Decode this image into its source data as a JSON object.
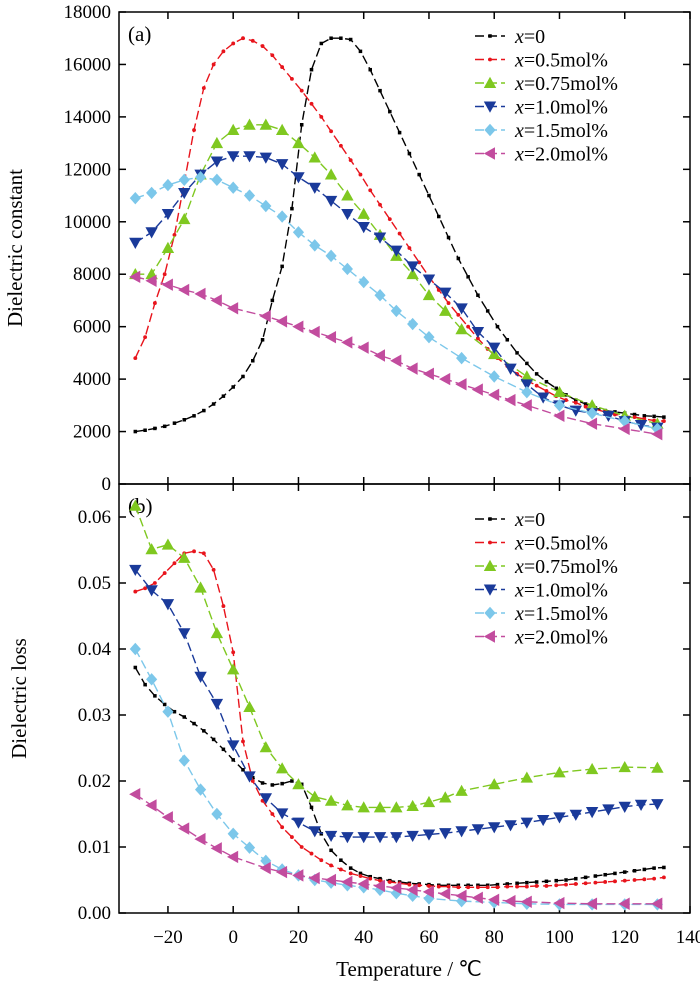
{
  "figure": {
    "xlabel": "Temperature / ℃"
  },
  "chart_data": [
    {
      "type": "line",
      "panel_label": "(a)",
      "ylabel": "Dielectric constant",
      "xlim": [
        -35,
        140
      ],
      "ylim": [
        0,
        18000
      ],
      "x_ticks": [
        "−20",
        "0",
        "20",
        "40",
        "60",
        "80",
        "100",
        "120",
        "140"
      ],
      "y_ticks": [
        "0",
        "2000",
        "4000",
        "6000",
        "8000",
        "10000",
        "12000",
        "14000",
        "16000",
        "18000"
      ],
      "legend_position": "top-right",
      "series": [
        {
          "name": "x=0",
          "legend_var": "x",
          "legend_rest": "=0",
          "color": "#000000",
          "marker": "square",
          "x": [
            -30,
            -27,
            -24,
            -21,
            -18,
            -15,
            -12,
            -9,
            -6,
            -3,
            0,
            3,
            6,
            9,
            12,
            15,
            18,
            21,
            24,
            27,
            30,
            33,
            36,
            39,
            42,
            45,
            48,
            51,
            54,
            57,
            60,
            63,
            66,
            69,
            72,
            75,
            78,
            81,
            84,
            87,
            90,
            93,
            96,
            99,
            102,
            105,
            108,
            111,
            114,
            117,
            120,
            123,
            126,
            129,
            132
          ],
          "y": [
            2000,
            2050,
            2120,
            2200,
            2320,
            2450,
            2600,
            2800,
            3050,
            3350,
            3700,
            4100,
            4700,
            5500,
            7000,
            8300,
            10500,
            13700,
            15800,
            16800,
            17000,
            17000,
            16950,
            16500,
            15800,
            15000,
            14200,
            13400,
            12600,
            11800,
            11000,
            10200,
            9400,
            8600,
            7900,
            7200,
            6600,
            6000,
            5500,
            5000,
            4600,
            4200,
            3900,
            3650,
            3400,
            3200,
            3050,
            2900,
            2800,
            2750,
            2700,
            2650,
            2600,
            2580,
            2550
          ]
        },
        {
          "name": "x=0.5mol%",
          "legend_var": "x",
          "legend_rest": "=0.5mol%",
          "color": "#e8141c",
          "marker": "circle",
          "x": [
            -30,
            -27,
            -24,
            -21,
            -18,
            -15,
            -12,
            -9,
            -6,
            -3,
            0,
            3,
            6,
            9,
            12,
            15,
            18,
            21,
            24,
            27,
            30,
            33,
            36,
            39,
            42,
            45,
            48,
            51,
            54,
            57,
            60,
            63,
            66,
            69,
            72,
            75,
            78,
            81,
            84,
            87,
            90,
            93,
            96,
            99,
            102,
            105,
            108,
            111,
            114,
            117,
            120,
            123,
            126,
            129,
            132
          ],
          "y": [
            4800,
            5600,
            6900,
            8000,
            9500,
            11500,
            13500,
            15100,
            16000,
            16500,
            16800,
            17000,
            16900,
            16700,
            16350,
            15900,
            15450,
            15000,
            14500,
            14000,
            13450,
            12900,
            12350,
            11800,
            11200,
            10650,
            10100,
            9550,
            9000,
            8450,
            7900,
            7400,
            6900,
            6450,
            6000,
            5550,
            5150,
            4800,
            4500,
            4200,
            3950,
            3750,
            3550,
            3350,
            3200,
            3100,
            2950,
            2850,
            2750,
            2650,
            2600,
            2550,
            2480,
            2420,
            2400
          ]
        },
        {
          "name": "x=0.75mol%",
          "legend_var": "x",
          "legend_rest": "=0.75mol%",
          "color": "#7fc820",
          "marker": "triangle-up",
          "x": [
            -30,
            -25,
            -20,
            -15,
            -10,
            -5,
            0,
            5,
            10,
            15,
            20,
            25,
            30,
            35,
            40,
            45,
            50,
            55,
            60,
            65,
            70,
            80,
            90,
            100,
            110,
            120,
            130
          ],
          "y": [
            8000,
            8000,
            9000,
            10100,
            11800,
            13000,
            13500,
            13700,
            13700,
            13500,
            13000,
            12450,
            11800,
            11000,
            10300,
            9500,
            8700,
            8000,
            7200,
            6600,
            5900,
            4950,
            4100,
            3500,
            3000,
            2600,
            2300
          ]
        },
        {
          "name": "x=1.0mol%",
          "legend_var": "x",
          "legend_rest": "=1.0mol%",
          "color": "#1a3a9a",
          "marker": "triangle-down",
          "x": [
            -30,
            -25,
            -20,
            -15,
            -10,
            -5,
            0,
            5,
            10,
            15,
            20,
            25,
            30,
            35,
            40,
            45,
            50,
            55,
            60,
            65,
            70,
            75,
            80,
            85,
            90,
            95,
            100,
            105,
            110,
            115,
            120,
            125,
            130
          ],
          "y": [
            9200,
            9600,
            10300,
            11100,
            11800,
            12300,
            12500,
            12500,
            12450,
            12200,
            11700,
            11300,
            10800,
            10300,
            9800,
            9400,
            8900,
            8300,
            7800,
            7300,
            6700,
            5800,
            5200,
            4400,
            3800,
            3300,
            3000,
            2800,
            2700,
            2600,
            2400,
            2250,
            2150
          ]
        },
        {
          "name": "x=1.5mol%",
          "legend_var": "x",
          "legend_rest": "=1.5mol%",
          "color": "#7cc7ea",
          "marker": "diamond",
          "x": [
            -30,
            -25,
            -20,
            -15,
            -10,
            -5,
            0,
            5,
            10,
            15,
            20,
            25,
            30,
            35,
            40,
            45,
            50,
            55,
            60,
            70,
            80,
            90,
            100,
            110,
            120,
            130
          ],
          "y": [
            10900,
            11100,
            11400,
            11600,
            11700,
            11600,
            11300,
            11000,
            10600,
            10200,
            9600,
            9100,
            8700,
            8200,
            7700,
            7200,
            6600,
            6100,
            5600,
            4800,
            4100,
            3500,
            3000,
            2700,
            2400,
            2100
          ]
        },
        {
          "name": "x=2.0mol%",
          "legend_var": "x",
          "legend_rest": "=2.0mol%",
          "color": "#c24c9e",
          "marker": "triangle-left",
          "x": [
            -30,
            -25,
            -20,
            -15,
            -10,
            -5,
            0,
            10,
            15,
            20,
            25,
            30,
            35,
            40,
            45,
            50,
            55,
            60,
            65,
            70,
            75,
            80,
            85,
            90,
            100,
            110,
            120,
            130
          ],
          "y": [
            7900,
            7750,
            7600,
            7400,
            7250,
            7000,
            6700,
            6400,
            6200,
            6000,
            5800,
            5600,
            5400,
            5200,
            4900,
            4700,
            4400,
            4200,
            4000,
            3800,
            3600,
            3400,
            3200,
            3000,
            2600,
            2300,
            2100,
            1900
          ]
        }
      ]
    },
    {
      "type": "line",
      "panel_label": "(b)",
      "ylabel": "Dielectric loss",
      "xlim": [
        -35,
        140
      ],
      "ylim": [
        0,
        0.065
      ],
      "x_ticks": [
        "−20",
        "0",
        "20",
        "40",
        "60",
        "80",
        "100",
        "120",
        "140"
      ],
      "y_ticks": [
        "0.00",
        "0.01",
        "0.02",
        "0.03",
        "0.04",
        "0.05",
        "0.06"
      ],
      "legend_position": "top-right",
      "series": [
        {
          "name": "x=0",
          "legend_var": "x",
          "legend_rest": "=0",
          "color": "#000000",
          "marker": "square",
          "x": [
            -30,
            -27,
            -24,
            -21,
            -18,
            -15,
            -12,
            -9,
            -6,
            -3,
            0,
            3,
            6,
            9,
            12,
            15,
            18,
            21,
            24,
            27,
            30,
            33,
            36,
            39,
            42,
            45,
            48,
            51,
            54,
            57,
            60,
            63,
            66,
            69,
            72,
            75,
            78,
            81,
            84,
            87,
            90,
            93,
            96,
            99,
            102,
            105,
            108,
            111,
            114,
            117,
            120,
            123,
            126,
            129,
            132
          ],
          "y": [
            0.0372,
            0.0346,
            0.0329,
            0.0316,
            0.0305,
            0.0297,
            0.0287,
            0.0276,
            0.0263,
            0.0248,
            0.0232,
            0.0217,
            0.0205,
            0.0197,
            0.0194,
            0.0196,
            0.02,
            0.0195,
            0.016,
            0.012,
            0.0095,
            0.008,
            0.0068,
            0.006,
            0.0055,
            0.0052,
            0.0049,
            0.0047,
            0.0045,
            0.0044,
            0.0043,
            0.0042,
            0.0042,
            0.0042,
            0.0042,
            0.0042,
            0.0042,
            0.0043,
            0.0044,
            0.0045,
            0.0046,
            0.0047,
            0.0048,
            0.0049,
            0.005,
            0.0052,
            0.0054,
            0.0056,
            0.0058,
            0.006,
            0.0062,
            0.0064,
            0.0066,
            0.0068,
            0.0069
          ]
        },
        {
          "name": "x=0.5mol%",
          "legend_var": "x",
          "legend_rest": "=0.5mol%",
          "color": "#e8141c",
          "marker": "circle",
          "x": [
            -30,
            -27,
            -24,
            -21,
            -18,
            -15,
            -12,
            -9,
            -6,
            -3,
            0,
            3,
            6,
            9,
            12,
            15,
            18,
            21,
            24,
            27,
            30,
            33,
            36,
            39,
            42,
            45,
            48,
            51,
            54,
            57,
            60,
            63,
            66,
            69,
            72,
            75,
            78,
            81,
            84,
            87,
            90,
            93,
            96,
            99,
            102,
            105,
            108,
            111,
            114,
            117,
            120,
            123,
            126,
            129,
            132
          ],
          "y": [
            0.0487,
            0.0492,
            0.05,
            0.0515,
            0.053,
            0.0545,
            0.0548,
            0.0545,
            0.052,
            0.0465,
            0.0395,
            0.026,
            0.02,
            0.017,
            0.015,
            0.013,
            0.0115,
            0.01,
            0.009,
            0.008,
            0.0072,
            0.0066,
            0.006,
            0.0056,
            0.0052,
            0.0049,
            0.0047,
            0.0045,
            0.0043,
            0.0042,
            0.0041,
            0.004,
            0.004,
            0.0039,
            0.0039,
            0.0039,
            0.0039,
            0.0039,
            0.004,
            0.004,
            0.004,
            0.0041,
            0.0041,
            0.0042,
            0.0043,
            0.0044,
            0.0045,
            0.0046,
            0.0047,
            0.0048,
            0.0049,
            0.005,
            0.0051,
            0.0052,
            0.0054
          ]
        },
        {
          "name": "x=0.75mol%",
          "legend_var": "x",
          "legend_rest": "=0.75mol%",
          "color": "#7fc820",
          "marker": "triangle-up",
          "x": [
            -30,
            -25,
            -20,
            -15,
            -10,
            -5,
            0,
            5,
            10,
            15,
            20,
            25,
            30,
            35,
            40,
            45,
            50,
            55,
            60,
            65,
            70,
            80,
            90,
            100,
            110,
            120,
            130
          ],
          "y": [
            0.0617,
            0.0551,
            0.0558,
            0.0538,
            0.0493,
            0.0424,
            0.0369,
            0.0312,
            0.0251,
            0.0219,
            0.0195,
            0.0176,
            0.017,
            0.0163,
            0.016,
            0.016,
            0.016,
            0.0162,
            0.0168,
            0.0175,
            0.0185,
            0.0195,
            0.0205,
            0.0213,
            0.0218,
            0.0221,
            0.022
          ]
        },
        {
          "name": "x=1.0mol%",
          "legend_var": "x",
          "legend_rest": "=1.0mol%",
          "color": "#1a3a9a",
          "marker": "triangle-down",
          "x": [
            -30,
            -25,
            -20,
            -15,
            -10,
            -5,
            0,
            5,
            10,
            15,
            20,
            25,
            30,
            35,
            40,
            45,
            50,
            55,
            60,
            65,
            70,
            75,
            80,
            85,
            90,
            95,
            100,
            105,
            110,
            115,
            120,
            125,
            130
          ],
          "y": [
            0.052,
            0.0489,
            0.0468,
            0.0424,
            0.0358,
            0.0317,
            0.0254,
            0.0207,
            0.0174,
            0.0151,
            0.0137,
            0.0124,
            0.0117,
            0.0115,
            0.0115,
            0.0115,
            0.0115,
            0.0117,
            0.0119,
            0.0121,
            0.0124,
            0.0127,
            0.013,
            0.0133,
            0.0137,
            0.0141,
            0.0145,
            0.0149,
            0.0153,
            0.0157,
            0.0161,
            0.0164,
            0.0165
          ]
        },
        {
          "name": "x=1.5mol%",
          "legend_var": "x",
          "legend_rest": "=1.5mol%",
          "color": "#7cc7ea",
          "marker": "diamond",
          "x": [
            -30,
            -25,
            -20,
            -15,
            -10,
            -5,
            0,
            5,
            10,
            15,
            20,
            25,
            30,
            35,
            40,
            45,
            50,
            55,
            60,
            70,
            80,
            90,
            100,
            110,
            120,
            130
          ],
          "y": [
            0.04,
            0.0354,
            0.0305,
            0.0231,
            0.0187,
            0.015,
            0.012,
            0.0099,
            0.0079,
            0.0066,
            0.0057,
            0.005,
            0.0046,
            0.0042,
            0.0039,
            0.0035,
            0.003,
            0.0026,
            0.0022,
            0.0018,
            0.0016,
            0.0014,
            0.0013,
            0.0013,
            0.0013,
            0.0013
          ]
        },
        {
          "name": "x=2.0mol%",
          "legend_var": "x",
          "legend_rest": "=2.0mol%",
          "color": "#c24c9e",
          "marker": "triangle-left",
          "x": [
            -30,
            -25,
            -20,
            -15,
            -10,
            -5,
            0,
            10,
            15,
            20,
            25,
            30,
            35,
            40,
            45,
            50,
            55,
            60,
            65,
            70,
            75,
            80,
            85,
            90,
            100,
            110,
            120,
            130
          ],
          "y": [
            0.018,
            0.0163,
            0.0145,
            0.0128,
            0.0112,
            0.0098,
            0.0085,
            0.0068,
            0.0062,
            0.0057,
            0.0053,
            0.005,
            0.0047,
            0.0044,
            0.0041,
            0.0038,
            0.0035,
            0.0032,
            0.0029,
            0.0026,
            0.0023,
            0.002,
            0.0018,
            0.0017,
            0.0015,
            0.0014,
            0.0014,
            0.0014
          ]
        }
      ]
    }
  ]
}
